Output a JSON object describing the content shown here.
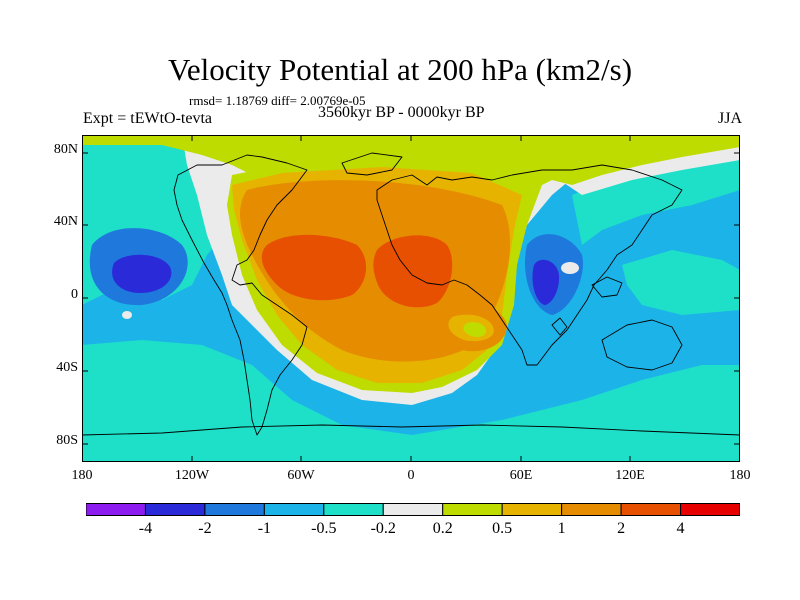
{
  "title": "Velocity Potential at 200 hPa (km2/s)",
  "stats": "rmsd= 1.18769  diff= 2.00769e-05",
  "experiment": "Expt = tEWtO-tevta",
  "subtitle": "3560kyr BP - 0000kyr BP",
  "season": "JJA",
  "map": {
    "projection": "cylindrical equidistant",
    "lon_range": [
      -180,
      180
    ],
    "lat_range": [
      -90,
      90
    ],
    "lat_ticks": [
      "80N",
      "40N",
      "0",
      "40S",
      "80S"
    ],
    "lon_ticks": [
      "180",
      "120W",
      "60W",
      "0",
      "60E",
      "120E",
      "180"
    ],
    "features": [
      "coastlines",
      "filled-contours"
    ]
  },
  "colorbar": {
    "colors": [
      "#8c1cf0",
      "#2a2ad9",
      "#1f78dc",
      "#1cb4e8",
      "#1ee0c8",
      "#ebebeb",
      "#bedc00",
      "#e6b400",
      "#e68c00",
      "#e65000",
      "#e60000"
    ],
    "labels": [
      "-4",
      "-2",
      "-1",
      "-0.5",
      "-0.2",
      "0.2",
      "0.5",
      "1",
      "2",
      "4"
    ]
  }
}
